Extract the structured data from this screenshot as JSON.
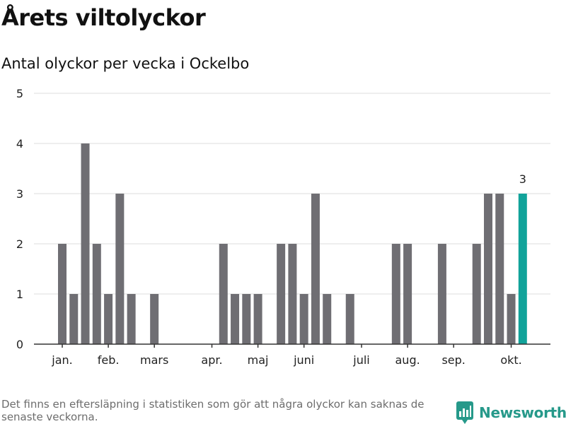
{
  "header": {
    "title": "Årets viltolyckor",
    "subtitle": "Antal olyckor per vecka i Ockelbo"
  },
  "colors": {
    "bar": "#6f6e73",
    "highlight": "#11a39a",
    "grid": "#dedede",
    "axis": "#333333",
    "text": "#222222",
    "brand": "#26998a"
  },
  "chart_data": {
    "type": "bar",
    "title": "Årets viltolyckor",
    "subtitle": "Antal olyckor per vecka i Ockelbo",
    "xlabel": "",
    "ylabel": "",
    "ylim": [
      0,
      5
    ],
    "yticks": [
      0,
      1,
      2,
      3,
      4,
      5
    ],
    "grid": true,
    "x": [
      1,
      2,
      3,
      4,
      5,
      6,
      7,
      8,
      9,
      10,
      11,
      12,
      13,
      14,
      15,
      16,
      17,
      18,
      19,
      20,
      21,
      22,
      23,
      24,
      25,
      26,
      27,
      28,
      29,
      30,
      31,
      32,
      33,
      34,
      35,
      36,
      37,
      38,
      39,
      40,
      41
    ],
    "values": [
      2,
      1,
      4,
      2,
      1,
      3,
      1,
      0,
      1,
      0,
      0,
      0,
      0,
      0,
      2,
      1,
      1,
      1,
      0,
      2,
      2,
      1,
      3,
      1,
      0,
      1,
      0,
      0,
      0,
      2,
      2,
      0,
      0,
      2,
      0,
      0,
      2,
      3,
      3,
      1,
      3
    ],
    "highlight_index": 40,
    "highlight_label": "3",
    "month_ticks": [
      {
        "label": "jan.",
        "x": 1
      },
      {
        "label": "feb.",
        "x": 5
      },
      {
        "label": "mars",
        "x": 9
      },
      {
        "label": "apr.",
        "x": 14
      },
      {
        "label": "maj",
        "x": 18
      },
      {
        "label": "juni",
        "x": 22
      },
      {
        "label": "juli",
        "x": 27
      },
      {
        "label": "aug.",
        "x": 31
      },
      {
        "label": "sep.",
        "x": 35
      },
      {
        "label": "okt.",
        "x": 40
      }
    ]
  },
  "footer": {
    "note": "Det finns en eftersläpning i statistiken som gör att några olyckor kan saknas de senaste veckorna.",
    "brand": "Newsworthy",
    "logo_icon": "newsworthy-logo-icon"
  }
}
